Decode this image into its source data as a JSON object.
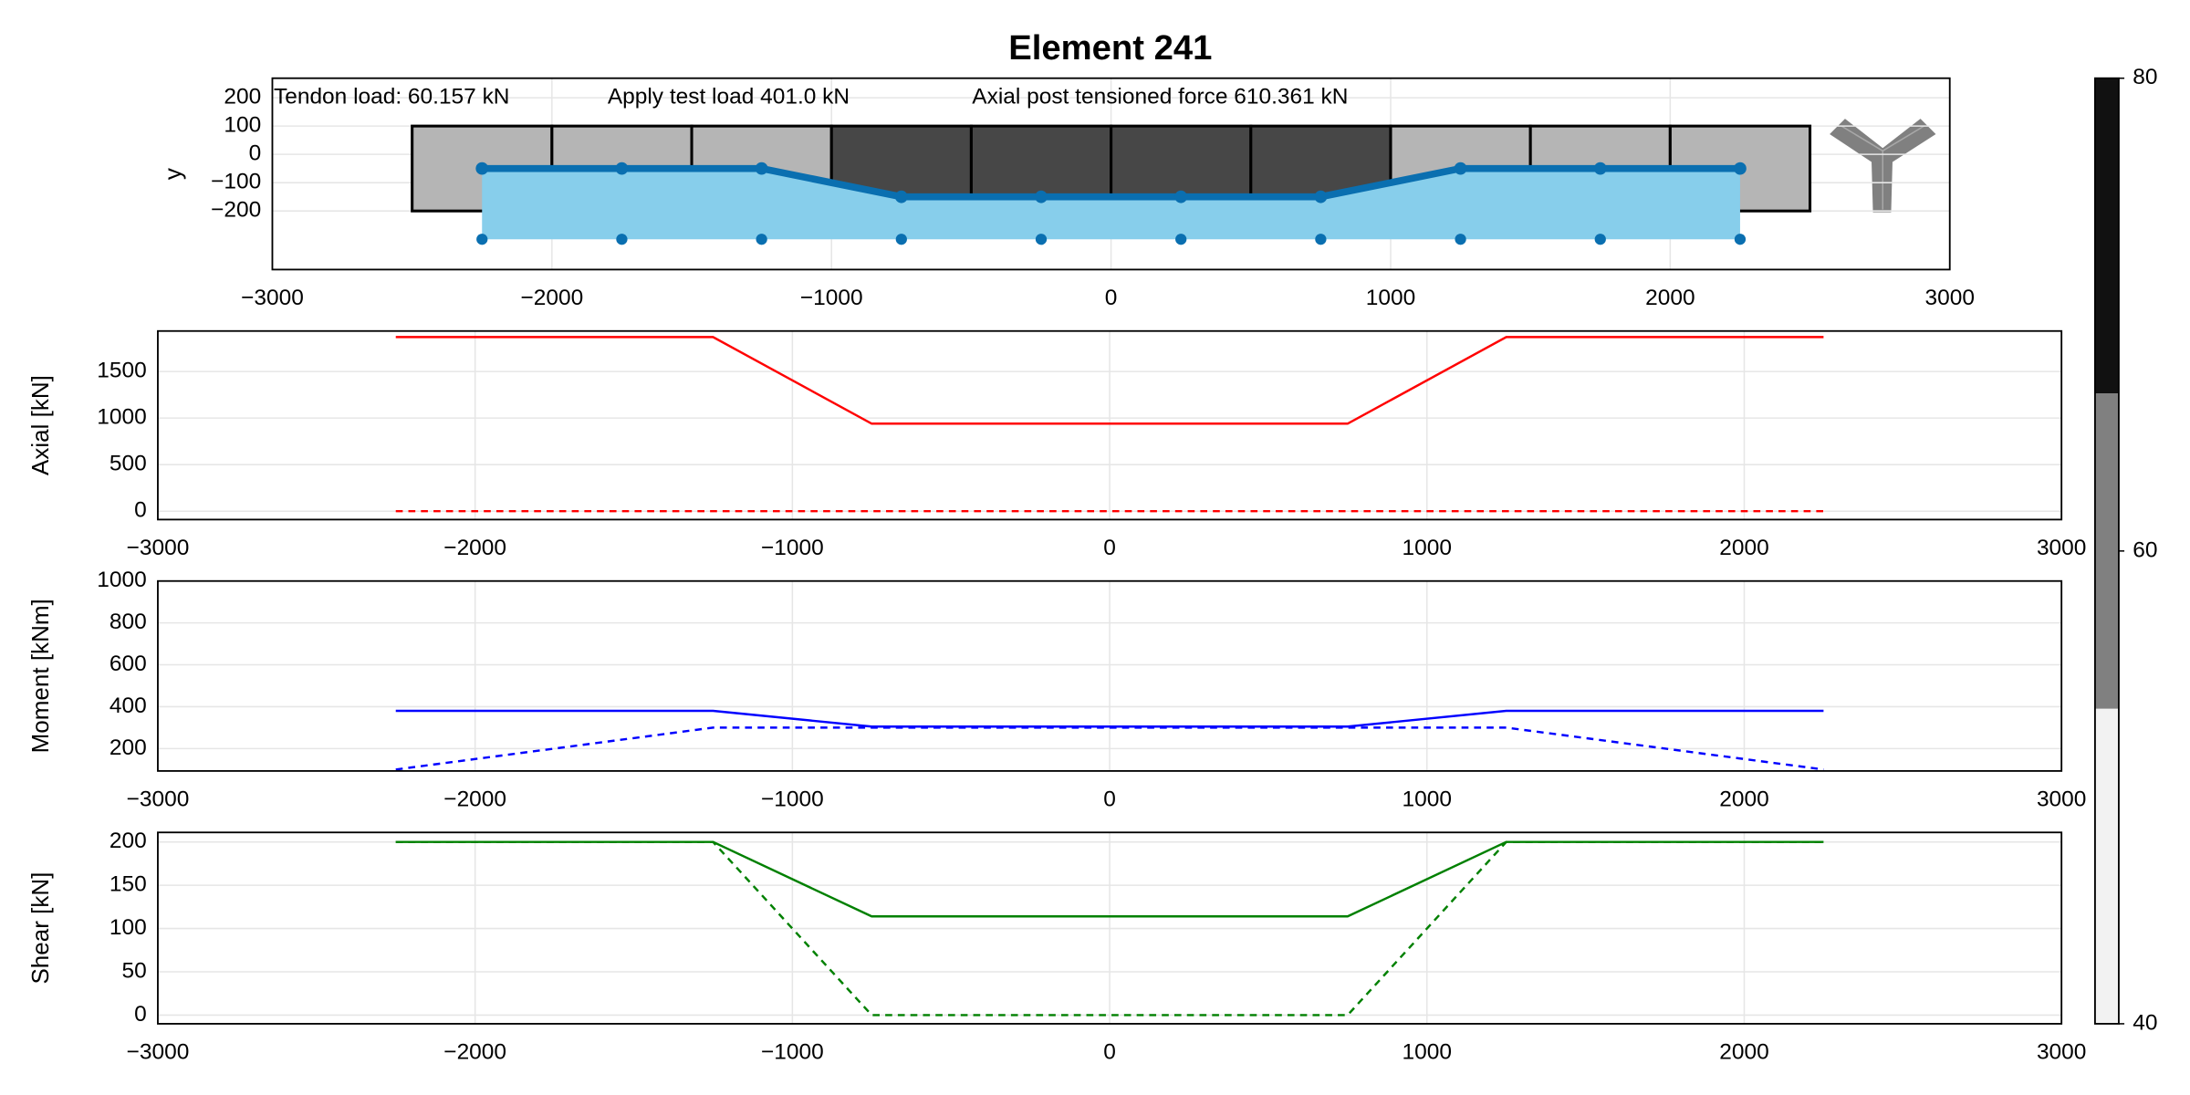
{
  "chart_data": [
    {
      "type": "section",
      "title": "Element 241",
      "annotations": [
        "Tendon load: 60.157 kN",
        "Apply test load 401.0 kN",
        "Axial post tensioned force 610.361 kN"
      ],
      "ylabel": "y",
      "xlim": [
        -3000,
        3000
      ],
      "ylim": [
        -407,
        269
      ],
      "xticks": [
        {
          "value": -3000,
          "label": "−3000"
        },
        {
          "value": -2000,
          "label": "−2000"
        },
        {
          "value": -1000,
          "label": "−1000"
        },
        0,
        1000,
        2000,
        3000
      ],
      "yticks": [
        {
          "value": -200,
          "label": "−200"
        },
        {
          "value": -100,
          "label": "−100"
        },
        0,
        100,
        200
      ],
      "grid": true,
      "elements": {
        "bins": [
          -2500,
          -2000,
          -1500,
          -1000,
          -500,
          0,
          500,
          1000,
          1500,
          2000,
          2500
        ],
        "top": 100,
        "bottom": -200,
        "colors": [
          "#b5b5b5",
          "#b5b5b5",
          "#b5b5b5",
          "#474747",
          "#474747",
          "#474747",
          "#474747",
          "#b5b5b5",
          "#b5b5b5",
          "#b5b5b5"
        ]
      },
      "tendon": {
        "x": [
          -2250,
          -1750,
          -1250,
          -750,
          -250,
          250,
          750,
          1250,
          1750,
          2250
        ],
        "y": [
          -50,
          -50,
          -50,
          -150,
          -150,
          -150,
          -150,
          -50,
          -50,
          -50
        ],
        "color": "#0a6fb0"
      },
      "anchors": {
        "x": [
          -2250,
          -1750,
          -1250,
          -750,
          -250,
          250,
          750,
          1250,
          1750,
          2250
        ],
        "y": [
          -300,
          -300,
          -300,
          -300,
          -300,
          -300,
          -300,
          -300,
          -300,
          -300
        ],
        "color": "#0a6fb0"
      },
      "area_color": "#87ceeb"
    },
    {
      "type": "line",
      "ylabel": "Axial [kN]",
      "xlim": [
        -3000,
        3000
      ],
      "ylim": [
        -90,
        1935
      ],
      "xticks": [
        {
          "value": -3000,
          "label": "−3000"
        },
        {
          "value": -2000,
          "label": "−2000"
        },
        {
          "value": -1000,
          "label": "−1000"
        },
        0,
        1000,
        2000,
        3000
      ],
      "yticks": [
        0,
        500,
        1000,
        1500
      ],
      "grid": true,
      "series": [
        {
          "color": "#ff0000",
          "dash": false,
          "x": [
            -2250,
            -1250,
            -750,
            750,
            1250,
            2250
          ],
          "values": [
            1870,
            1870,
            940,
            940,
            1870,
            1870
          ]
        },
        {
          "color": "#ff0000",
          "dash": true,
          "x": [
            -2250,
            2250
          ],
          "values": [
            0,
            0
          ]
        }
      ]
    },
    {
      "type": "line",
      "ylabel": "Moment [kNm]",
      "xlim": [
        -3000,
        3000
      ],
      "ylim": [
        93,
        1000
      ],
      "xticks": [
        {
          "value": -3000,
          "label": "−3000"
        },
        {
          "value": -2000,
          "label": "−2000"
        },
        {
          "value": -1000,
          "label": "−1000"
        },
        0,
        1000,
        2000,
        3000
      ],
      "yticks": [
        200,
        400,
        600,
        800,
        1000
      ],
      "grid": true,
      "series": [
        {
          "color": "#0000ff",
          "dash": false,
          "x": [
            -2250,
            -1250,
            -750,
            750,
            1250,
            2250
          ],
          "values": [
            380,
            380,
            305,
            305,
            380,
            380
          ]
        },
        {
          "color": "#0000ff",
          "dash": true,
          "x": [
            -2250,
            -1250,
            -750,
            750,
            1250,
            2250
          ],
          "values": [
            100,
            300,
            300,
            300,
            300,
            100
          ]
        }
      ]
    },
    {
      "type": "line",
      "ylabel": "Shear [kN]",
      "xlim": [
        -3000,
        3000
      ],
      "ylim": [
        -10,
        211
      ],
      "xticks": [
        {
          "value": -3000,
          "label": "−3000"
        },
        {
          "value": -2000,
          "label": "−2000"
        },
        {
          "value": -1000,
          "label": "−1000"
        },
        0,
        1000,
        2000,
        3000
      ],
      "yticks": [
        0,
        50,
        100,
        150,
        200
      ],
      "grid": true,
      "series": [
        {
          "color": "#008000",
          "dash": false,
          "x": [
            -2250,
            -1250,
            -750,
            750,
            1250,
            2250
          ],
          "values": [
            200,
            200,
            114,
            114,
            200,
            200
          ]
        },
        {
          "color": "#008000",
          "dash": true,
          "x": [
            -2250,
            -1250,
            -750,
            750,
            1250,
            2250
          ],
          "values": [
            200,
            200,
            0,
            0,
            200,
            200
          ]
        }
      ]
    },
    {
      "type": "colorbar",
      "ylim": [
        40,
        80
      ],
      "yticks": [
        40,
        60,
        80
      ],
      "bins": [
        40,
        53.33,
        66.67,
        80
      ],
      "colors": [
        "#f2f2f2",
        "#808080",
        "#111111"
      ]
    }
  ]
}
